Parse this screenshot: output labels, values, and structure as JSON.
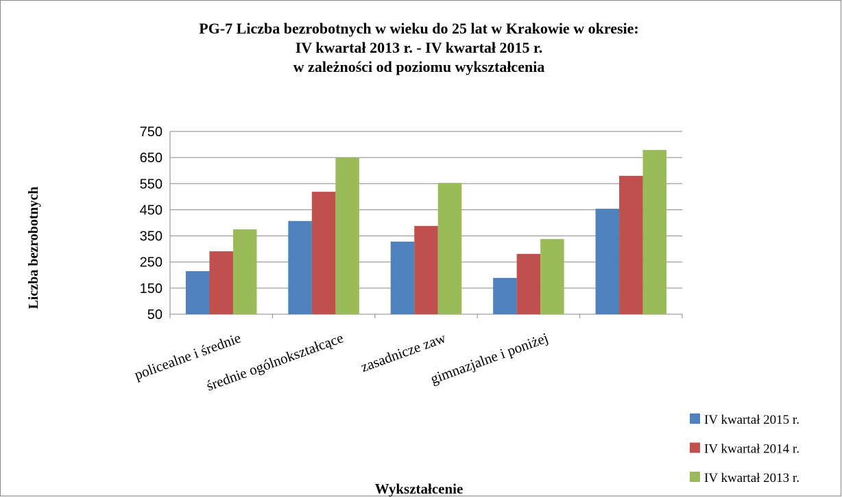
{
  "chart_data": {
    "type": "bar",
    "title": [
      "PG-7 Liczba bezrobotnych w wieku do 25 lat w Krakowie w okresie:",
      "IV kwartał  2013 r. - IV kwartał 2015  r.",
      "w zależności od poziomu wykształcenia"
    ],
    "x_label": "Wykształcenie",
    "y_label": "Liczba bezrobotnych",
    "categories": [
      "policealne i średnie",
      "średnie  ogólnokształcące",
      "zasadnicze zaw",
      "gimnazjalne i poniżej",
      null
    ],
    "series": [
      {
        "name": "IV kwartał 2015 r.",
        "color": "#4f81bd",
        "values": [
          215,
          407,
          328,
          189,
          454
        ]
      },
      {
        "name": "IV kwartał 2014 r.",
        "color": "#c0504d",
        "values": [
          291,
          519,
          388,
          281,
          580
        ]
      },
      {
        "name": "IV kwartał 2013 r.",
        "color": "#9bbb59",
        "values": [
          375,
          650,
          553,
          338,
          679
        ]
      }
    ],
    "ylim": [
      50,
      750
    ],
    "yticks": [
      50,
      150,
      250,
      350,
      450,
      550,
      650,
      750
    ],
    "grid": true,
    "legend": "bottom-right"
  }
}
